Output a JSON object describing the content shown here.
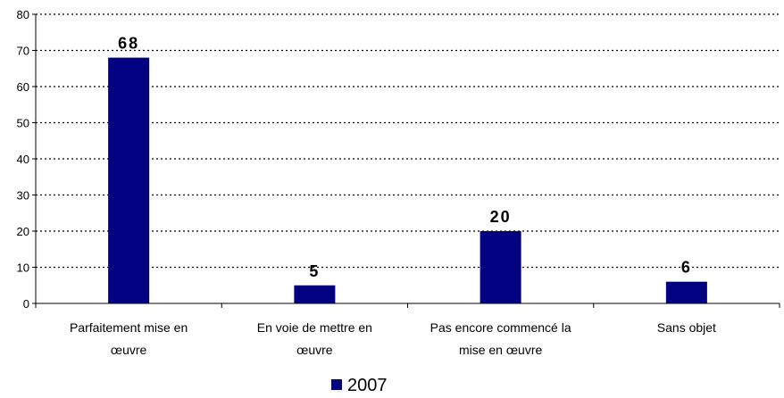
{
  "chart_data": {
    "type": "bar",
    "categories": [
      [
        "Parfaitement mise en",
        "œuvre"
      ],
      [
        "En voie de mettre en",
        "œuvre"
      ],
      [
        "Pas encore commencé la",
        "mise en œuvre"
      ],
      [
        "Sans objet"
      ]
    ],
    "series": [
      {
        "name": "2007",
        "values": [
          68,
          5,
          20,
          6
        ],
        "color": "#000080"
      }
    ],
    "data_labels": [
      "68",
      "5",
      "20",
      "6"
    ],
    "yticks": [
      "0",
      "10",
      "20",
      "30",
      "40",
      "50",
      "60",
      "70",
      "80"
    ],
    "ylim": [
      0,
      80
    ],
    "grid": true,
    "legend_position": "bottom-center"
  }
}
